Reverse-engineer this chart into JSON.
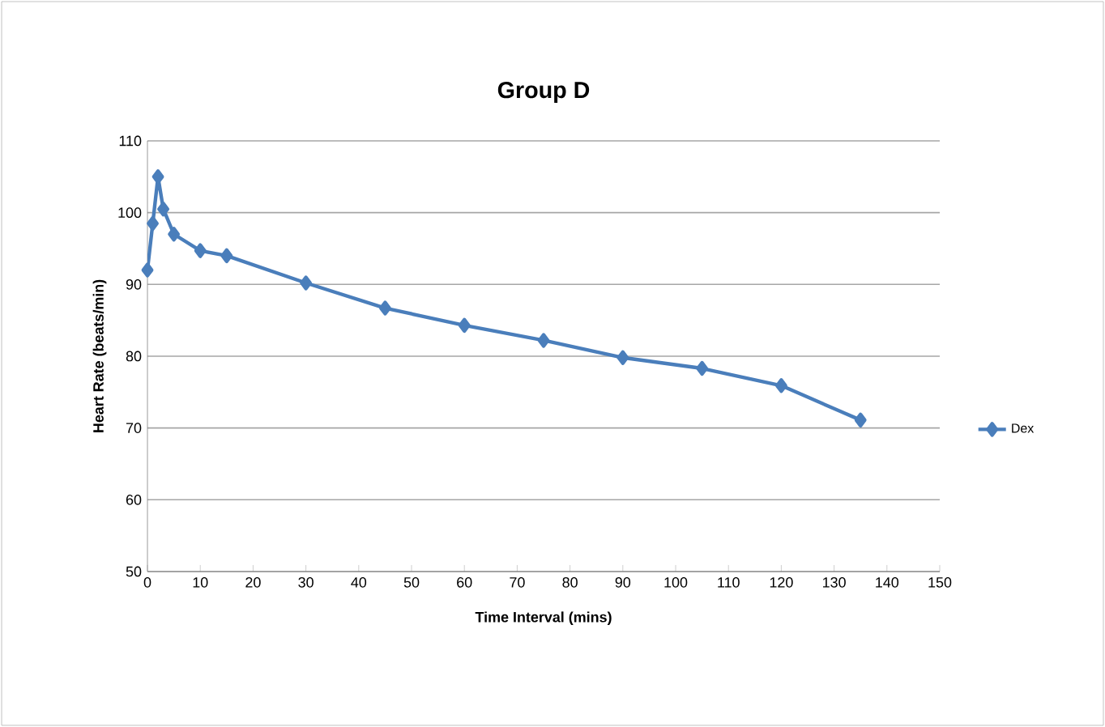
{
  "chart_data": {
    "type": "line",
    "title": "Group D",
    "xlabel": "Time Interval (mins)",
    "ylabel": "Heart Rate  (beats/min)",
    "x": [
      0,
      1,
      2,
      3,
      5,
      10,
      15,
      30,
      45,
      60,
      75,
      90,
      105,
      120,
      135
    ],
    "series": [
      {
        "name": "Dex",
        "color": "#4a7ebb",
        "values": [
          92,
          98.5,
          105,
          100.5,
          97,
          94.7,
          94,
          90.2,
          86.7,
          84.3,
          82.2,
          79.8,
          78.3,
          75.9,
          71.1
        ]
      }
    ],
    "xlim": [
      0,
      150
    ],
    "xticks": [
      0,
      10,
      20,
      30,
      40,
      50,
      60,
      70,
      80,
      90,
      100,
      110,
      120,
      130,
      140,
      150
    ],
    "ylim": [
      50,
      110
    ],
    "yticks": [
      50,
      60,
      70,
      80,
      90,
      100,
      110
    ],
    "grid": "y",
    "legend": "right",
    "marker": "diamond",
    "line_style": "solid"
  }
}
